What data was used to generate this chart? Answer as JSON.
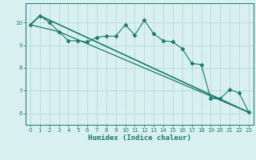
{
  "xlabel": "Humidex (Indice chaleur)",
  "bg_color": "#d8f0f0",
  "line_color": "#1a7a6e",
  "grid_color": "#b8d8d8",
  "xlim": [
    -0.5,
    23.5
  ],
  "ylim": [
    5.5,
    10.85
  ],
  "yticks": [
    6,
    7,
    8,
    9,
    10
  ],
  "xticks": [
    0,
    1,
    2,
    3,
    4,
    5,
    6,
    7,
    8,
    9,
    10,
    11,
    12,
    13,
    14,
    15,
    16,
    17,
    18,
    19,
    20,
    21,
    22,
    23
  ],
  "series": [
    {
      "x": [
        0,
        1,
        2,
        3,
        4,
        5,
        6,
        7,
        8,
        9,
        10,
        11,
        12,
        13,
        14,
        15,
        16,
        17,
        18,
        19,
        20,
        21,
        22,
        23
      ],
      "y": [
        9.9,
        10.3,
        10.0,
        9.6,
        9.2,
        9.2,
        9.15,
        9.35,
        9.4,
        9.4,
        9.9,
        9.45,
        10.1,
        9.5,
        9.2,
        9.15,
        8.85,
        8.2,
        8.15,
        6.65,
        6.65,
        7.05,
        6.9,
        6.05
      ],
      "marker": "D",
      "markersize": 2.5,
      "linewidth": 0.8
    },
    {
      "x": [
        0,
        1,
        23
      ],
      "y": [
        9.9,
        10.3,
        6.05
      ],
      "marker": null,
      "linewidth": 1.2
    },
    {
      "x": [
        0,
        3,
        23
      ],
      "y": [
        9.9,
        9.6,
        6.05
      ],
      "marker": null,
      "linewidth": 0.9
    }
  ]
}
